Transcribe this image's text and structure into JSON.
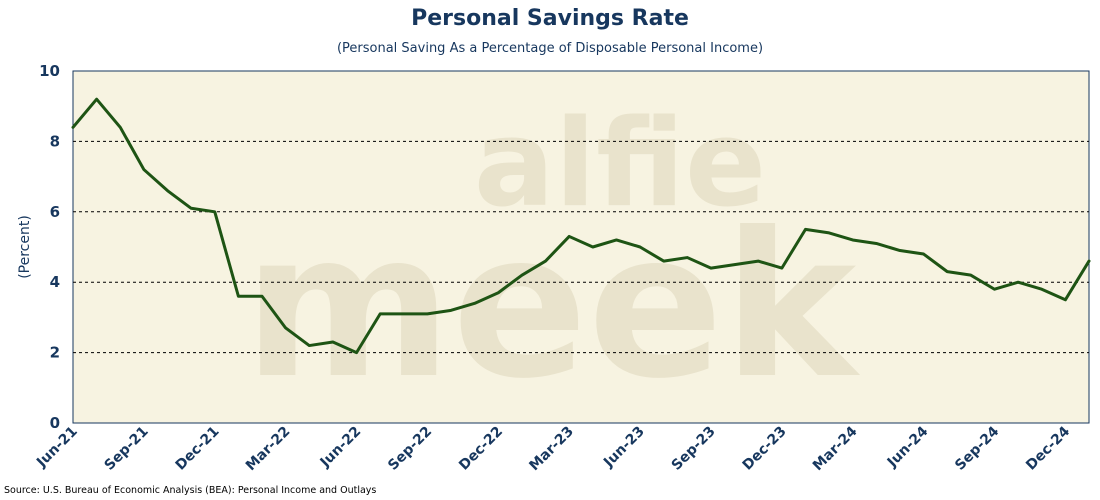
{
  "title": "Personal Savings Rate",
  "subtitle": "(Personal Saving As a Percentage of Disposable Personal Income)",
  "source": "Source: U.S. Bureau of Economic Analysis (BEA): Personal Income and Outlays",
  "watermark": {
    "line1": "alfie",
    "line2": "meek"
  },
  "colors": {
    "line": "#1e5414",
    "plot_bg": "#f7f3e1",
    "text": "#17375e",
    "watermark": "#e9e3cc"
  },
  "chart_data": {
    "type": "line",
    "title": "Personal Savings Rate",
    "subtitle": "(Personal Saving As a Percentage of Disposable Personal Income)",
    "xlabel": "",
    "ylabel": "(Percent)",
    "ylim": [
      0,
      10
    ],
    "yticks": [
      "0",
      "2",
      "4",
      "6",
      "8",
      "10"
    ],
    "grid": "horizontal dashed",
    "legend": "none",
    "x_tick_labels": [
      "Jun-21",
      "Sep-21",
      "Dec-21",
      "Mar-22",
      "Jun-22",
      "Sep-22",
      "Dec-22",
      "Mar-23",
      "Jun-23",
      "Sep-23",
      "Dec-23",
      "Mar-24",
      "Jun-24",
      "Sep-24",
      "Dec-24"
    ],
    "x": [
      "Jun-21",
      "Jul-21",
      "Aug-21",
      "Sep-21",
      "Oct-21",
      "Nov-21",
      "Dec-21",
      "Jan-22",
      "Feb-22",
      "Mar-22",
      "Apr-22",
      "May-22",
      "Jun-22",
      "Jul-22",
      "Aug-22",
      "Sep-22",
      "Oct-22",
      "Nov-22",
      "Dec-22",
      "Jan-23",
      "Feb-23",
      "Mar-23",
      "Apr-23",
      "May-23",
      "Jun-23",
      "Jul-23",
      "Aug-23",
      "Sep-23",
      "Oct-23",
      "Nov-23",
      "Dec-23",
      "Jan-24",
      "Feb-24",
      "Mar-24",
      "Apr-24",
      "May-24",
      "Jun-24",
      "Jul-24",
      "Aug-24",
      "Sep-24",
      "Oct-24",
      "Nov-24",
      "Dec-24",
      "Jan-25"
    ],
    "series": [
      {
        "values": [
          8.4,
          9.2,
          8.4,
          7.2,
          6.6,
          6.1,
          6.0,
          3.6,
          3.6,
          2.7,
          2.2,
          2.3,
          2.0,
          3.1,
          3.1,
          3.1,
          3.2,
          3.4,
          3.7,
          4.2,
          4.6,
          5.3,
          5.0,
          5.2,
          5.0,
          4.6,
          4.7,
          4.4,
          4.5,
          4.6,
          4.4,
          5.5,
          5.4,
          5.2,
          5.1,
          4.9,
          4.8,
          4.3,
          4.2,
          3.8,
          4.0,
          3.8,
          3.5,
          4.6
        ]
      }
    ]
  }
}
